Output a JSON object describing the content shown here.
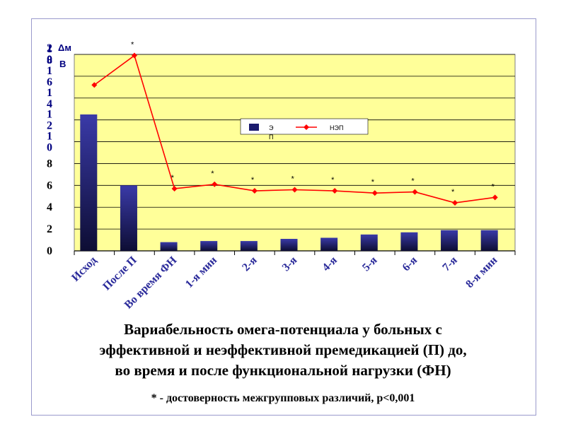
{
  "chart_data": {
    "type": "bar+line",
    "unit_label": [
      "Δм",
      "В"
    ],
    "categories": [
      "Исход",
      "После П",
      "Во время ФН",
      "1-я мин",
      "2-я",
      "3-я",
      "4-я",
      "5-я",
      "6-я",
      "7-я",
      "8-я мин"
    ],
    "ylim": [
      0,
      18
    ],
    "yticks": [
      0,
      2,
      4,
      6,
      8,
      10,
      12,
      14,
      16,
      18
    ],
    "ytick_labels": [
      "0",
      "2",
      "4",
      "6",
      "8",
      "1\n0",
      "1\n2",
      "1\n4",
      "1\n6",
      "1\n8"
    ],
    "overflow_tick_label": "2\n0",
    "series": [
      {
        "name": "Э\nП",
        "type": "bar",
        "color": "#1b1b6e",
        "values": [
          12.5,
          6.0,
          0.8,
          0.9,
          0.9,
          1.1,
          1.2,
          1.5,
          1.7,
          1.9,
          1.9
        ]
      },
      {
        "name": "НЭП",
        "type": "line",
        "color": "#ff0000",
        "values": [
          15.2,
          17.9,
          5.7,
          6.1,
          5.5,
          5.6,
          5.5,
          5.3,
          5.4,
          4.4,
          4.9
        ]
      }
    ],
    "significance_marks": [
      "",
      "*",
      "*",
      "*",
      "*",
      "*",
      "*",
      "*",
      "*",
      "*",
      "*"
    ],
    "grid": true,
    "plot_background": "#ffff99",
    "legend_position": "inside-top-center"
  },
  "caption": {
    "title_lines": [
      "Вариабельность омега-потенциала у больных с",
      "эффективной и неэффективной премедикацией (П) до,",
      "во время и после  функциональной нагрузки (ФН)"
    ],
    "note": "* - достоверность межгрупповых различий, р<0,001"
  }
}
